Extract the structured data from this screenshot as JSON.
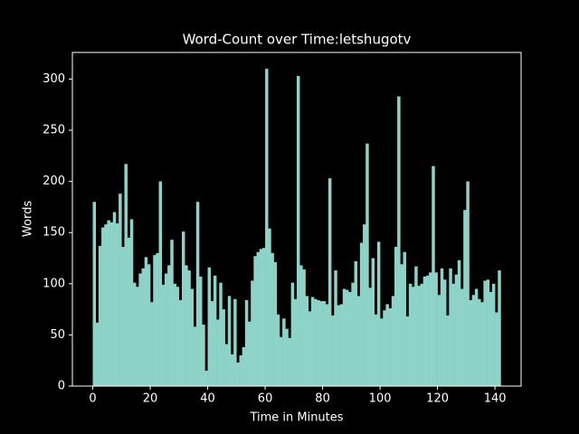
{
  "chart_data": {
    "type": "bar",
    "title": "Word-Count over Time:letshugotv",
    "x_label": "Time in Minutes",
    "y_label": "Words",
    "color": "#8dd3c7",
    "x": [
      0,
      1,
      2,
      3,
      4,
      5,
      6,
      7,
      8,
      9,
      10,
      11,
      12,
      13,
      14,
      15,
      16,
      17,
      18,
      19,
      20,
      21,
      22,
      23,
      24,
      25,
      26,
      27,
      28,
      29,
      30,
      31,
      32,
      33,
      34,
      35,
      36,
      37,
      38,
      39,
      40,
      41,
      42,
      43,
      44,
      45,
      46,
      47,
      48,
      49,
      50,
      51,
      52,
      53,
      54,
      55,
      56,
      57,
      58,
      59,
      60,
      61,
      62,
      63,
      64,
      65,
      66,
      67,
      68,
      69,
      70,
      71,
      72,
      73,
      74,
      75,
      76,
      77,
      78,
      79,
      80,
      81,
      82,
      83,
      84,
      85,
      86,
      87,
      88,
      89,
      90,
      91,
      92,
      93,
      94,
      95,
      96,
      97,
      98,
      99,
      100,
      101,
      102,
      103,
      104,
      105,
      106,
      107,
      108,
      109,
      110,
      111,
      112,
      113,
      114,
      115,
      116,
      117,
      118,
      119,
      120,
      121,
      122,
      123,
      124,
      125,
      126,
      127,
      128,
      129,
      130,
      131,
      132,
      133,
      134,
      135,
      136,
      137,
      138,
      139,
      140,
      141
    ],
    "values": [
      180,
      62,
      137,
      155,
      158,
      162,
      160,
      170,
      159,
      188,
      136,
      217,
      145,
      163,
      101,
      97,
      110,
      115,
      126,
      119,
      82,
      128,
      130,
      200,
      99,
      110,
      118,
      143,
      100,
      97,
      84,
      151,
      118,
      113,
      95,
      58,
      180,
      107,
      60,
      15,
      116,
      83,
      108,
      65,
      101,
      75,
      41,
      88,
      31,
      85,
      23,
      30,
      38,
      84,
      63,
      103,
      127,
      131,
      134,
      135,
      310,
      154,
      130,
      121,
      70,
      48,
      66,
      56,
      47,
      101,
      85,
      303,
      118,
      114,
      88,
      73,
      87,
      85,
      84,
      83,
      83,
      80,
      203,
      69,
      113,
      79,
      80,
      95,
      94,
      92,
      101,
      122,
      88,
      140,
      158,
      237,
      96,
      125,
      70,
      141,
      66,
      74,
      80,
      76,
      88,
      136,
      283,
      119,
      131,
      68,
      100,
      97,
      117,
      98,
      100,
      107,
      108,
      111,
      215,
      111,
      89,
      115,
      104,
      69,
      115,
      100,
      109,
      123,
      95,
      172,
      200,
      84,
      89,
      95,
      85,
      82,
      103,
      104,
      92,
      100,
      72,
      113
    ],
    "xlim": [
      -7.1,
      149.1
    ],
    "xticks": [
      0,
      20,
      40,
      60,
      80,
      100,
      120,
      140
    ],
    "ylim": [
      0,
      326
    ],
    "yticks": [
      0,
      50,
      100,
      150,
      200,
      250,
      300
    ]
  }
}
